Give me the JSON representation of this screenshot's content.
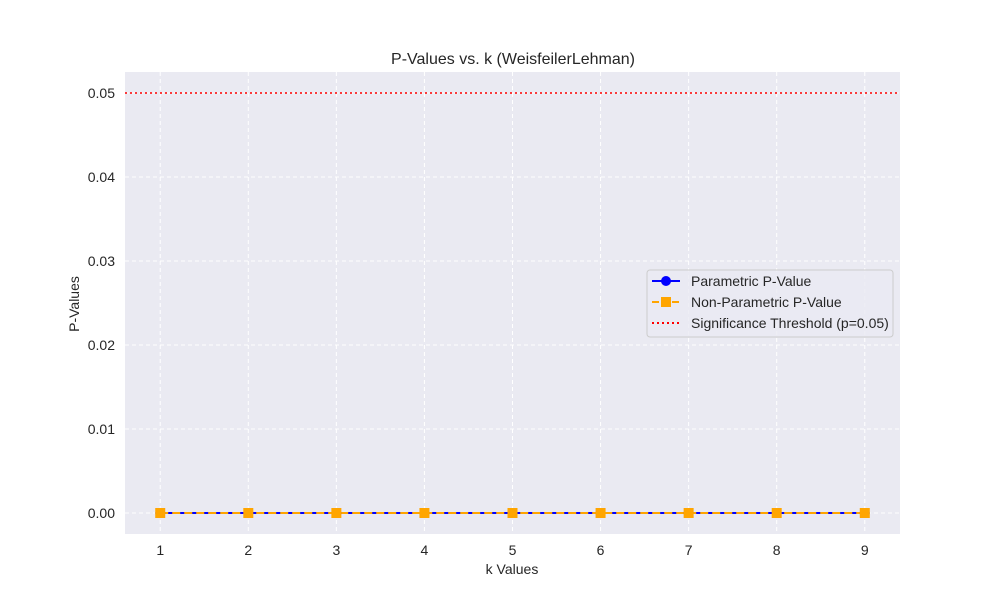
{
  "chart_data": {
    "type": "line",
    "title": "P-Values vs. k (WeisfeilerLehman)",
    "xlabel": "k Values",
    "ylabel": "P-Values",
    "x": [
      1,
      2,
      3,
      4,
      5,
      6,
      7,
      8,
      9
    ],
    "xlim": [
      0.6,
      9.4
    ],
    "ylim": [
      -0.0025,
      0.0525
    ],
    "xticks": [
      1,
      2,
      3,
      4,
      5,
      6,
      7,
      8,
      9
    ],
    "yticks": [
      "0.00",
      "0.01",
      "0.02",
      "0.03",
      "0.04",
      "0.05"
    ],
    "grid": true,
    "legend_position": "center-right",
    "series": [
      {
        "name": "Parametric P-Value",
        "values": [
          0,
          0,
          0,
          0,
          0,
          0,
          0,
          0,
          0
        ],
        "color": "#0000ff",
        "marker": "circle",
        "line_style": "solid"
      },
      {
        "name": "Non-Parametric P-Value",
        "values": [
          0,
          0,
          0,
          0,
          0,
          0,
          0,
          0,
          0
        ],
        "color": "#ffa500",
        "marker": "square",
        "line_style": "dashed"
      }
    ],
    "threshold": {
      "name": "Significance Threshold (p=0.05)",
      "value": 0.05,
      "color": "#ff0000",
      "line_style": "dotted"
    },
    "colors": {
      "plot_background": "#eaeaf2",
      "grid": "#ffffff",
      "text": "#262626"
    }
  }
}
